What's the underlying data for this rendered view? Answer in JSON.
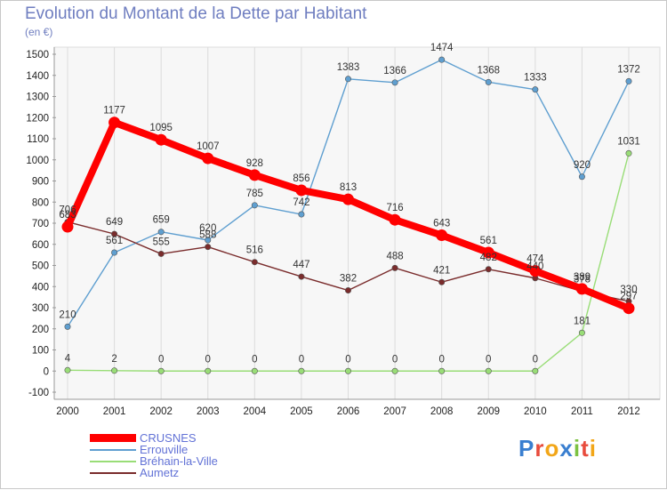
{
  "title": "Evolution du Montant de la Dette par Habitant",
  "unit": "(en €)",
  "brand": "Proxiti",
  "chart_data": {
    "type": "line",
    "categories": [
      "2000",
      "2001",
      "2002",
      "2003",
      "2004",
      "2005",
      "2006",
      "2007",
      "2008",
      "2009",
      "2010",
      "2011",
      "2012"
    ],
    "ylim": [
      -100,
      1500
    ],
    "yticks": [
      -100,
      0,
      100,
      200,
      300,
      400,
      500,
      600,
      700,
      800,
      900,
      1000,
      1100,
      1200,
      1300,
      1400,
      1500
    ],
    "grid": "vertical",
    "legend_position": "bottom-left",
    "series": [
      {
        "name": "CRUSNES",
        "color": "#ff0000",
        "values": [
          683,
          1177,
          1095,
          1007,
          928,
          856,
          813,
          716,
          643,
          561,
          474,
          389,
          297
        ],
        "labels": [
          "683",
          "1177",
          "1095",
          "1007",
          "928",
          "856",
          "813",
          "716",
          "643",
          "561",
          "474",
          "389",
          "297"
        ]
      },
      {
        "name": "Errouville",
        "color": "#5f9fd0",
        "values": [
          210,
          561,
          659,
          620,
          785,
          742,
          1383,
          1366,
          1474,
          1368,
          1333,
          920,
          1372
        ],
        "labels": [
          "210",
          "561",
          "659",
          "620",
          "785",
          "742",
          "1383",
          "1366",
          "1474",
          "1368",
          "1333",
          "920",
          "1372"
        ]
      },
      {
        "name": "Bréhain-la-Ville",
        "color": "#99dd77",
        "values": [
          4,
          2,
          0,
          0,
          0,
          0,
          0,
          0,
          0,
          0,
          0,
          181,
          1031
        ],
        "labels": [
          "4",
          "2",
          "0",
          "0",
          "0",
          "0",
          "0",
          "0",
          "0",
          "0",
          "0",
          "181",
          "1031"
        ]
      },
      {
        "name": "Aumetz",
        "color": "#7a2c2c",
        "values": [
          706,
          649,
          555,
          588,
          516,
          447,
          382,
          488,
          421,
          482,
          440,
          378,
          330
        ],
        "labels": [
          "706",
          "649",
          "555",
          "588",
          "516",
          "447",
          "382",
          "488",
          "421",
          "482",
          "440",
          "378",
          "330"
        ]
      }
    ]
  }
}
